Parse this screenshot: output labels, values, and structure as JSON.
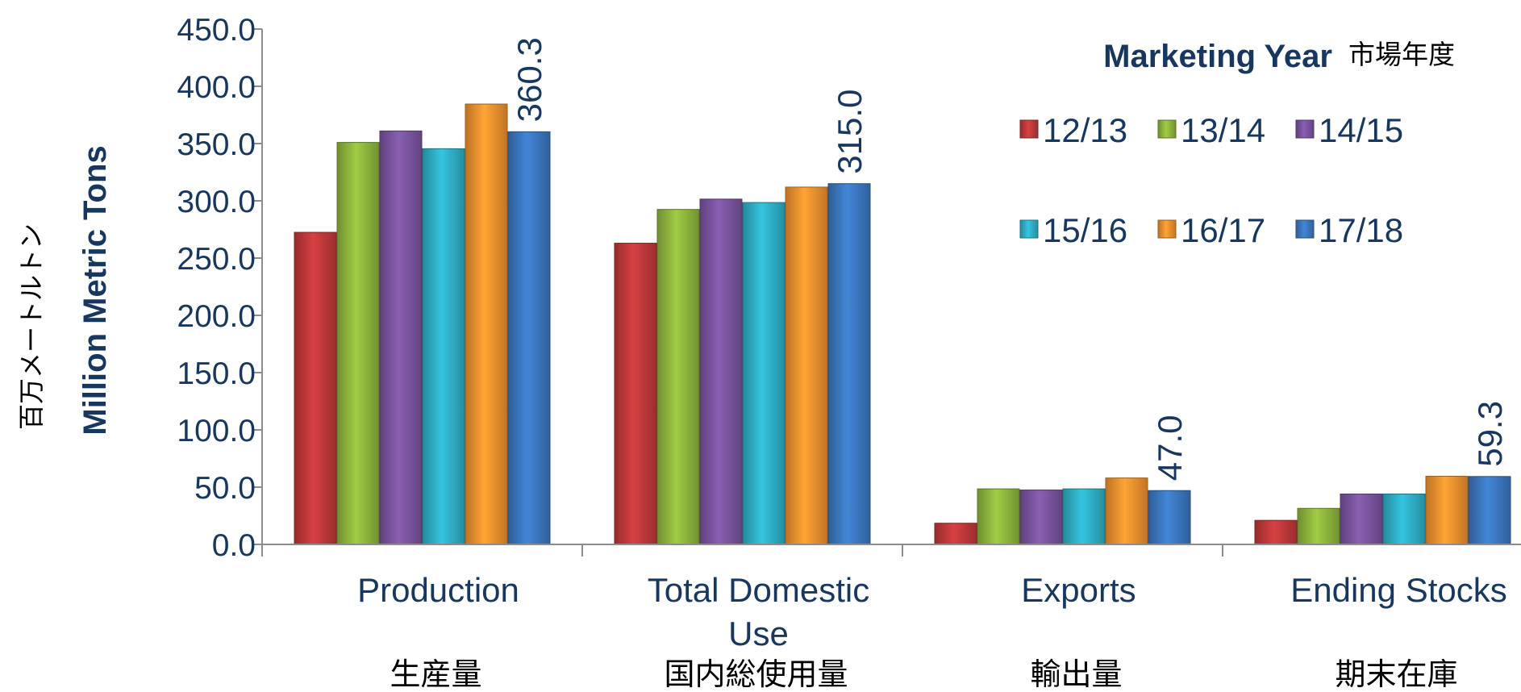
{
  "chart_data": {
    "type": "bar",
    "ylabel": "Million Metric Tons",
    "ylabel_ja": "百万メートルトン",
    "ylim": [
      0,
      450
    ],
    "yticks": [
      "0.0",
      "50.0",
      "100.0",
      "150.0",
      "200.0",
      "250.0",
      "300.0",
      "350.0",
      "400.0",
      "450.0"
    ],
    "ytick_values": [
      0,
      50,
      100,
      150,
      200,
      250,
      300,
      350,
      400,
      450
    ],
    "categories": [
      {
        "label": "Production",
        "label2": "",
        "label_ja": "生産量"
      },
      {
        "label": "Total Domestic",
        "label2": "Use",
        "label_ja": "国内総使用量"
      },
      {
        "label": "Exports",
        "label2": "",
        "label_ja": "輸出量"
      },
      {
        "label": "Ending Stocks",
        "label2": "",
        "label_ja": "期末在庫"
      }
    ],
    "series": [
      {
        "name": "12/13",
        "color": "#c0393b",
        "values": [
          272.5,
          263.0,
          18.5,
          21.0
        ]
      },
      {
        "name": "13/14",
        "color": "#8fb63d",
        "values": [
          351.0,
          292.5,
          48.5,
          31.5
        ]
      },
      {
        "name": "14/15",
        "color": "#7b55a0",
        "values": [
          361.0,
          301.5,
          47.5,
          44.0
        ]
      },
      {
        "name": "15/16",
        "color": "#2fb0c8",
        "values": [
          345.5,
          298.5,
          48.5,
          44.0
        ]
      },
      {
        "name": "16/17",
        "color": "#f2922e",
        "values": [
          384.5,
          312.0,
          58.0,
          59.5
        ]
      },
      {
        "name": "17/18",
        "color": "#3c78c0",
        "values": [
          360.3,
          315.0,
          47.0,
          59.3
        ]
      }
    ],
    "data_labels": [
      {
        "category_index": 0,
        "series_index": 5,
        "text": "360.3"
      },
      {
        "category_index": 1,
        "series_index": 5,
        "text": "315.0"
      },
      {
        "category_index": 2,
        "series_index": 5,
        "text": "47.0"
      },
      {
        "category_index": 3,
        "series_index": 5,
        "text": "59.3"
      }
    ],
    "legend": {
      "title": "Marketing Year",
      "title_ja": "市場年度",
      "placement": "top-right"
    },
    "grid": false
  }
}
